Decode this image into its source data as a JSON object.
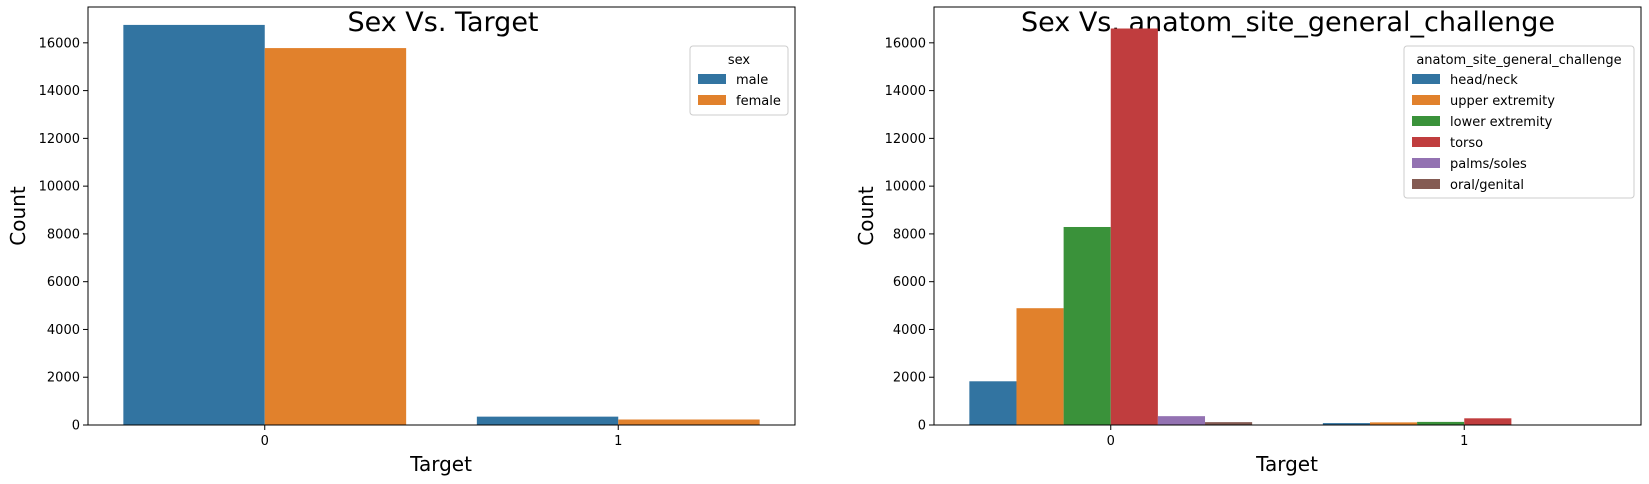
{
  "chart_data": [
    {
      "type": "bar",
      "title": "Sex Vs. Target",
      "xlabel": "Target",
      "ylabel": "Count",
      "categories": [
        "0",
        "1"
      ],
      "ylim": [
        0,
        17500
      ],
      "yticks": [
        0,
        2000,
        4000,
        6000,
        8000,
        10000,
        12000,
        14000,
        16000
      ],
      "legend": {
        "title": "sex",
        "placement": "upper-right"
      },
      "series": [
        {
          "name": "male",
          "color": "#3274a1",
          "values": [
            16750,
            350
          ]
        },
        {
          "name": "female",
          "color": "#e1812c",
          "values": [
            15780,
            230
          ]
        }
      ]
    },
    {
      "type": "bar",
      "title": "Sex Vs. anatom_site_general_challenge",
      "xlabel": "Target",
      "ylabel": "Count",
      "categories": [
        "0",
        "1"
      ],
      "ylim": [
        0,
        17500
      ],
      "yticks": [
        0,
        2000,
        4000,
        6000,
        8000,
        10000,
        12000,
        14000,
        16000
      ],
      "legend": {
        "title": "anatom_site_general_challenge",
        "placement": "upper-right"
      },
      "series": [
        {
          "name": "head/neck",
          "color": "#3274a1",
          "values": [
            1830,
            80
          ]
        },
        {
          "name": "upper extremity",
          "color": "#e1812c",
          "values": [
            4890,
            110
          ]
        },
        {
          "name": "lower extremity",
          "color": "#3a923a",
          "values": [
            8290,
            130
          ]
        },
        {
          "name": "torso",
          "color": "#c03d3e",
          "values": [
            16600,
            280
          ]
        },
        {
          "name": "palms/soles",
          "color": "#9372b2",
          "values": [
            370,
            8
          ]
        },
        {
          "name": "oral/genital",
          "color": "#845b53",
          "values": [
            120,
            4
          ]
        }
      ]
    }
  ]
}
